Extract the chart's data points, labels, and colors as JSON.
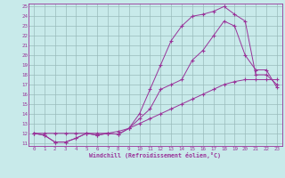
{
  "xlabel": "Windchill (Refroidissement éolien,°C)",
  "ylabel": "",
  "xlim": [
    -0.5,
    23.5
  ],
  "ylim": [
    10.7,
    25.3
  ],
  "xticks": [
    0,
    1,
    2,
    3,
    4,
    5,
    6,
    7,
    8,
    9,
    10,
    11,
    12,
    13,
    14,
    15,
    16,
    17,
    18,
    19,
    20,
    21,
    22,
    23
  ],
  "yticks": [
    11,
    12,
    13,
    14,
    15,
    16,
    17,
    18,
    19,
    20,
    21,
    22,
    23,
    24,
    25
  ],
  "background_color": "#c8eaea",
  "line_color": "#993399",
  "grid_color": "#99bbbb",
  "line1_x": [
    0,
    1,
    2,
    3,
    4,
    5,
    6,
    7,
    8,
    9,
    10,
    11,
    12,
    13,
    14,
    15,
    16,
    17,
    18,
    19,
    20,
    21,
    22,
    23
  ],
  "line1_y": [
    12.0,
    11.8,
    11.1,
    11.1,
    11.5,
    12.0,
    11.8,
    12.0,
    11.9,
    12.5,
    14.0,
    16.5,
    19.0,
    21.5,
    23.0,
    24.0,
    24.2,
    24.5,
    25.0,
    24.2,
    23.5,
    18.0,
    18.0,
    17.0
  ],
  "line2_x": [
    0,
    1,
    2,
    3,
    4,
    5,
    6,
    7,
    8,
    9,
    10,
    11,
    12,
    13,
    14,
    15,
    16,
    17,
    18,
    19,
    20,
    21,
    22,
    23
  ],
  "line2_y": [
    12.0,
    11.8,
    11.1,
    11.1,
    11.5,
    12.0,
    11.8,
    12.0,
    11.9,
    12.5,
    13.5,
    14.5,
    16.5,
    17.0,
    17.5,
    19.5,
    20.5,
    22.0,
    23.5,
    23.0,
    20.0,
    18.5,
    18.5,
    16.7
  ],
  "line3_x": [
    0,
    1,
    2,
    3,
    4,
    5,
    6,
    7,
    8,
    9,
    10,
    11,
    12,
    13,
    14,
    15,
    16,
    17,
    18,
    19,
    20,
    21,
    22,
    23
  ],
  "line3_y": [
    12.0,
    12.0,
    12.0,
    12.0,
    12.0,
    12.0,
    12.0,
    12.0,
    12.2,
    12.5,
    13.0,
    13.5,
    14.0,
    14.5,
    15.0,
    15.5,
    16.0,
    16.5,
    17.0,
    17.3,
    17.5,
    17.5,
    17.5,
    17.5
  ]
}
